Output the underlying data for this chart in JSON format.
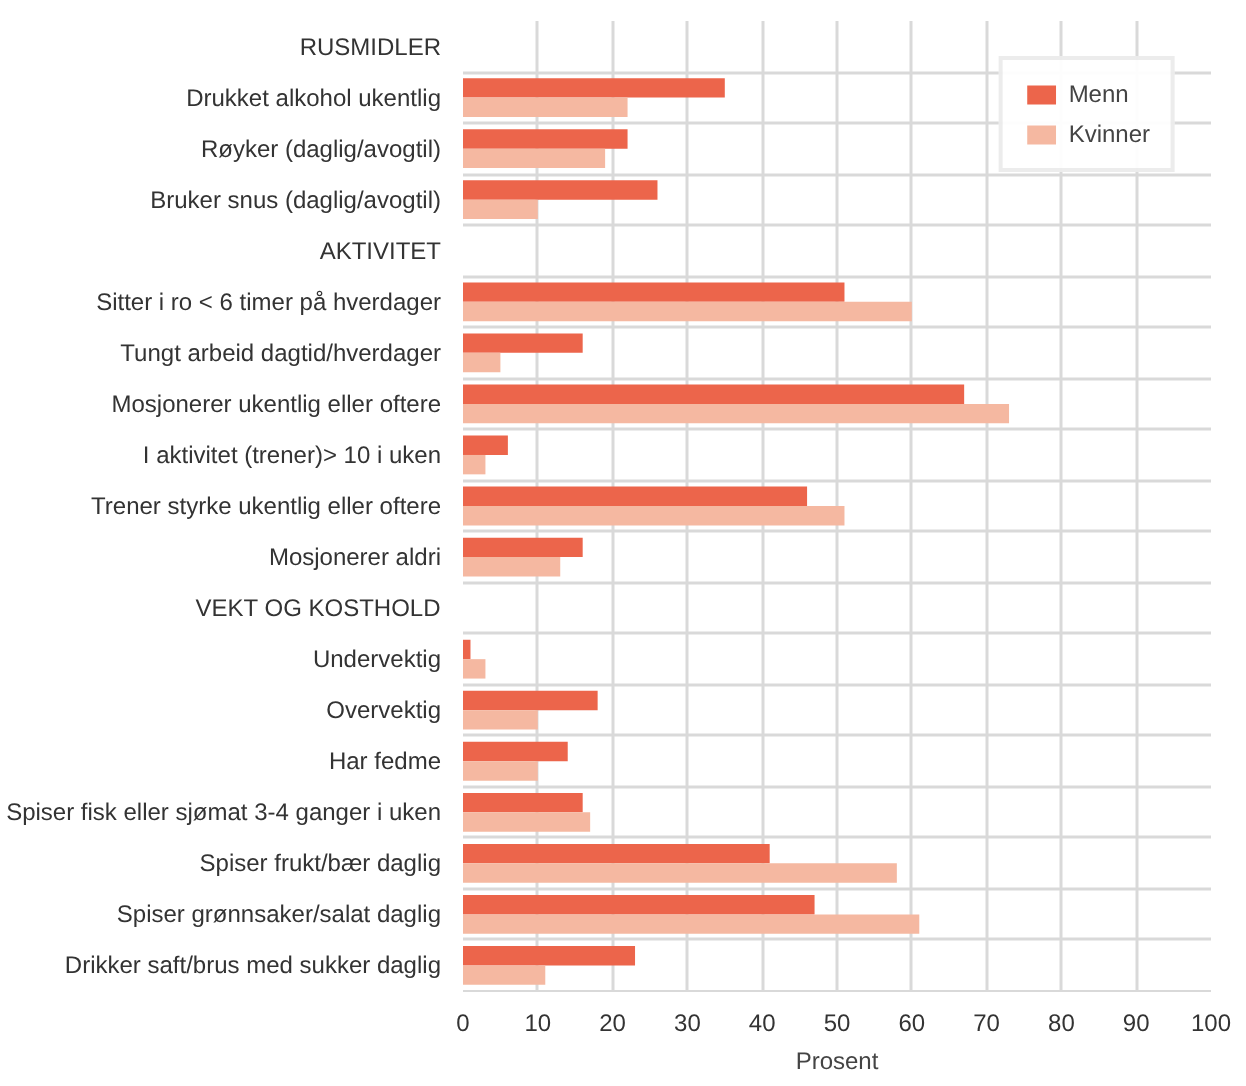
{
  "chart_data": {
    "type": "bar",
    "orientation": "horizontal",
    "xlabel": "Prosent",
    "categories": [
      "RUSMIDLER",
      "Drukket alkohol ukentlig",
      "Røyker (daglig/avogtil)",
      "Bruker snus (daglig/avogtil)",
      "AKTIVITET",
      "Sitter i ro < 6 timer på hverdager",
      "Tungt arbeid dagtid/hverdager",
      "Mosjonerer ukentlig eller oftere",
      "I aktivitet (trener)> 10 i uken",
      "Trener styrke ukentlig eller oftere",
      "Mosjonerer aldri",
      "VEKT OG KOSTHOLD",
      "Undervektig",
      "Overvektig",
      "Har fedme",
      "Spiser fisk eller sjømat 3-4 ganger i uken",
      "Spiser frukt/bær daglig",
      "Spiser grønnsaker/salat daglig",
      "Drikker saft/brus med sukker daglig"
    ],
    "series": [
      {
        "name": "Menn",
        "color": "#ec654b",
        "values": [
          null,
          35,
          22,
          26,
          null,
          51,
          16,
          67,
          6,
          46,
          16,
          null,
          1,
          18,
          14,
          16,
          41,
          47,
          23
        ]
      },
      {
        "name": "Kvinner",
        "color": "#f5b8a1",
        "values": [
          null,
          22,
          19,
          10,
          null,
          60,
          5,
          73,
          3,
          51,
          13,
          null,
          3,
          10,
          10,
          17,
          58,
          61,
          11
        ]
      }
    ],
    "xlim": [
      0,
      100
    ],
    "xticks": [
      0,
      10,
      20,
      30,
      40,
      50,
      60,
      70,
      80,
      90,
      100
    ],
    "grid": true,
    "legend": "top right"
  }
}
